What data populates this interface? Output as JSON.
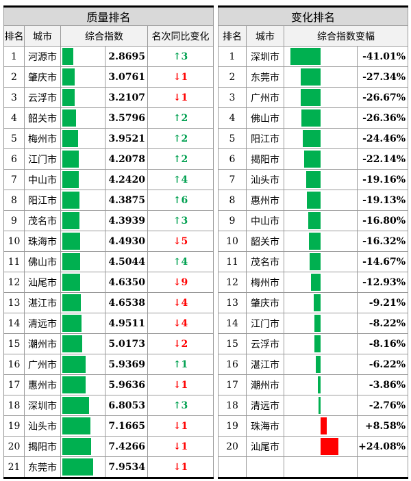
{
  "left": {
    "title": "质量排名",
    "headers": [
      "排名",
      "城市",
      "综合指数",
      "名次同比变化"
    ],
    "rows": [
      [
        "1",
        "河源市",
        2.8695,
        "up",
        "3"
      ],
      [
        "2",
        "肇庆市",
        3.0761,
        "down",
        "1"
      ],
      [
        "3",
        "云浮市",
        3.2107,
        "down",
        "1"
      ],
      [
        "4",
        "韶关市",
        3.5796,
        "up",
        "2"
      ],
      [
        "5",
        "梅州市",
        3.9521,
        "up",
        "2"
      ],
      [
        "6",
        "江门市",
        4.2078,
        "up",
        "2"
      ],
      [
        "7",
        "中山市",
        4.242,
        "up",
        "4"
      ],
      [
        "8",
        "阳江市",
        4.3875,
        "up",
        "6"
      ],
      [
        "9",
        "茂名市",
        4.3939,
        "up",
        "3"
      ],
      [
        "10",
        "珠海市",
        4.493,
        "down",
        "5"
      ],
      [
        "11",
        "佛山市",
        4.5044,
        "up",
        "4"
      ],
      [
        "12",
        "汕尾市",
        4.635,
        "down",
        "9"
      ],
      [
        "13",
        "湛江市",
        4.6538,
        "down",
        "4"
      ],
      [
        "14",
        "清远市",
        4.9511,
        "down",
        "4"
      ],
      [
        "15",
        "潮州市",
        5.0173,
        "down",
        "2"
      ],
      [
        "16",
        "广州市",
        5.9369,
        "up",
        "1"
      ],
      [
        "17",
        "惠州市",
        5.9636,
        "down",
        "1"
      ],
      [
        "18",
        "深圳市",
        6.8053,
        "up",
        "3"
      ],
      [
        "19",
        "汕头市",
        7.1665,
        "down",
        "1"
      ],
      [
        "20",
        "揭阳市",
        7.4266,
        "down",
        "1"
      ],
      [
        "21",
        "东莞市",
        7.9534,
        "down",
        "1"
      ]
    ]
  },
  "right": {
    "title": "变化排名",
    "headers": [
      "排名",
      "城市",
      "综合指数变幅"
    ],
    "rows": [
      [
        "1",
        "深圳市",
        -41.01
      ],
      [
        "2",
        "东莞市",
        -27.34
      ],
      [
        "3",
        "广州市",
        -26.67
      ],
      [
        "4",
        "佛山市",
        -26.36
      ],
      [
        "5",
        "阳江市",
        -24.46
      ],
      [
        "6",
        "揭阳市",
        -22.14
      ],
      [
        "7",
        "汕头市",
        -19.16
      ],
      [
        "8",
        "惠州市",
        -19.13
      ],
      [
        "9",
        "中山市",
        -16.8
      ],
      [
        "10",
        "韶关市",
        -16.32
      ],
      [
        "11",
        "茂名市",
        -14.67
      ],
      [
        "12",
        "梅州市",
        -12.93
      ],
      [
        "13",
        "肇庆市",
        -9.21
      ],
      [
        "14",
        "江门市",
        -8.22
      ],
      [
        "15",
        "云浮市",
        -8.16
      ],
      [
        "16",
        "湛江市",
        -6.22
      ],
      [
        "17",
        "潮州市",
        -3.86
      ],
      [
        "18",
        "清远市",
        -2.76
      ],
      [
        "19",
        "珠海市",
        8.58
      ],
      [
        "20",
        "汕尾市",
        24.08
      ]
    ]
  },
  "arrows": {
    "up": "↑",
    "down": "↓"
  },
  "colors": {
    "bar": "#00b050",
    "positive": "#ff0000",
    "up": "#00a050",
    "down": "#ff0000"
  }
}
